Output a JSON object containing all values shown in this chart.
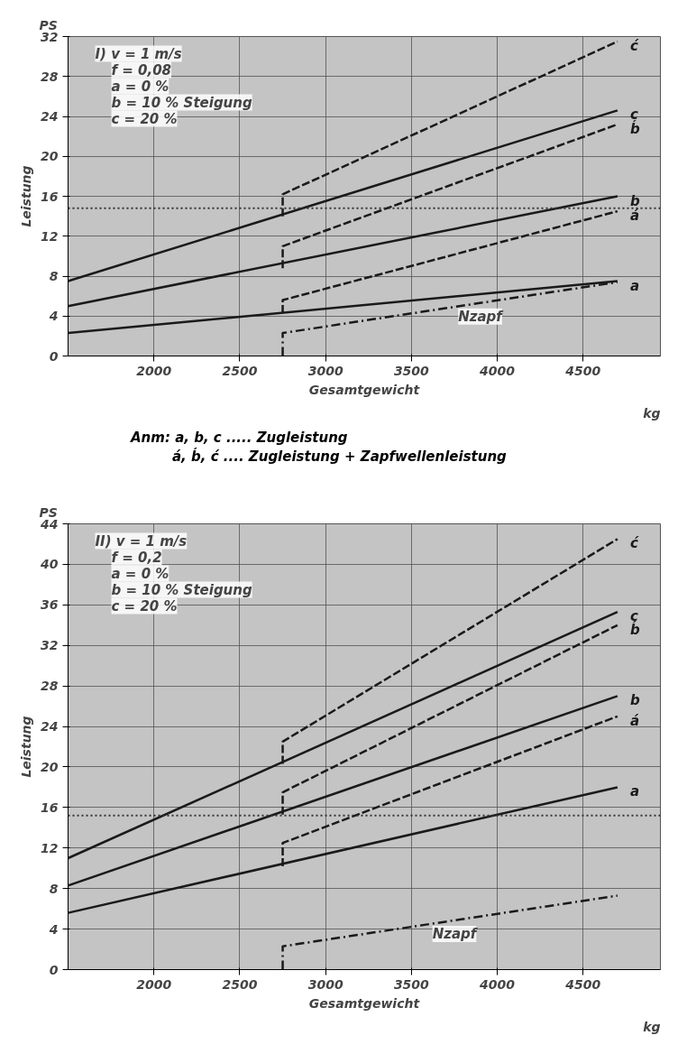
{
  "chart_data": [
    {
      "type": "line",
      "ylabel": "Leistung",
      "xlabel": "Gesamtgewicht",
      "xlim": [
        1500,
        4950
      ],
      "xticks": [
        2000,
        2500,
        3000,
        3500,
        4000,
        4500
      ],
      "ylim": [
        0,
        32
      ],
      "yticks": [
        0,
        4,
        8,
        12,
        16,
        20,
        24,
        28,
        32
      ],
      "grid": true,
      "legend": false,
      "annotations": [
        "I) v = 1 m/s\nf = 0,08\na = 0 %\nb = 10 % Steigung\nc = 20 %",
        "PS",
        "kg",
        "Anm:  a, b, c ..... Zugleistung",
        "á, b́, ć .... Zugleistung + Zapfwellenleistung",
        {
          "text": "Nzapf",
          "x": 3900,
          "y": 5.31
        }
      ],
      "ref_lines": [
        {
          "axis": "y",
          "value": 14.8,
          "label": null,
          "line_style": "dotted",
          "color": "#333333"
        }
      ],
      "series": [
        {
          "name": "a",
          "color": "#1a1a1a",
          "line_style": "solid",
          "x": [
            1500,
            4700
          ],
          "values": [
            2.3,
            7.5
          ]
        },
        {
          "name": "b",
          "color": "#1a1a1a",
          "line_style": "solid",
          "x": [
            1500,
            4700
          ],
          "values": [
            5,
            16
          ]
        },
        {
          "name": "c",
          "color": "#1a1a1a",
          "line_style": "solid",
          "x": [
            1500,
            4700
          ],
          "values": [
            7.5,
            24.6
          ]
        },
        {
          "name": "á",
          "color": "#1a1a1a",
          "line_style": "dashed",
          "x": [
            2750,
            2750,
            4700
          ],
          "values": [
            4.3,
            5.6,
            14.5
          ]
        },
        {
          "name": "b́",
          "color": "#1a1a1a",
          "line_style": "dashed",
          "x": [
            2750,
            2750,
            4700
          ],
          "values": [
            8.8,
            11,
            23.2
          ]
        },
        {
          "name": "ć",
          "color": "#1a1a1a",
          "line_style": "dashed",
          "x": [
            2750,
            2750,
            4700
          ],
          "values": [
            14,
            16.2,
            31.5
          ]
        },
        {
          "color": "#1a1a1a",
          "line_style": "dashdot",
          "x": [
            2750,
            2750,
            4700
          ],
          "values": [
            0,
            2.3,
            7.4
          ]
        }
      ]
    },
    {
      "type": "line",
      "ylabel": "Leistung",
      "xlabel": "Gesamtgewicht",
      "xlim": [
        1500,
        4950
      ],
      "xticks": [
        2000,
        2500,
        3000,
        3500,
        4000,
        4500
      ],
      "ylim": [
        0,
        44
      ],
      "yticks": [
        0,
        4,
        8,
        12,
        16,
        20,
        24,
        28,
        32,
        36,
        40,
        44
      ],
      "grid": true,
      "legend": false,
      "annotations": [
        "II) v = 1 m/s\nf = 0,2\na = 0 %\nb = 10 % Steigung\nc = 20 %",
        "PS",
        "kg",
        {
          "text": "Nzapf",
          "x": 3750,
          "y": 4.86
        }
      ],
      "ref_lines": [
        {
          "axis": "y",
          "value": 15.2,
          "label": null,
          "line_style": "dotted",
          "color": "#333333"
        }
      ],
      "series": [
        {
          "name": "a",
          "color": "#1a1a1a",
          "line_style": "solid",
          "x": [
            1500,
            4700
          ],
          "values": [
            5.6,
            18
          ]
        },
        {
          "name": "b",
          "color": "#1a1a1a",
          "line_style": "solid",
          "x": [
            1500,
            4700
          ],
          "values": [
            8.3,
            27
          ]
        },
        {
          "name": "c",
          "color": "#1a1a1a",
          "line_style": "solid",
          "x": [
            1500,
            4700
          ],
          "values": [
            11,
            35.3
          ]
        },
        {
          "name": "á",
          "color": "#1a1a1a",
          "line_style": "dashed",
          "x": [
            2750,
            2750,
            4700
          ],
          "values": [
            10.2,
            12.5,
            25
          ]
        },
        {
          "name": "b́",
          "color": "#1a1a1a",
          "line_style": "dashed",
          "x": [
            2750,
            2750,
            4700
          ],
          "values": [
            15.3,
            17.5,
            34
          ]
        },
        {
          "name": "ć",
          "color": "#1a1a1a",
          "line_style": "dashed",
          "x": [
            2750,
            2750,
            4700
          ],
          "values": [
            20.3,
            22.5,
            42.5
          ]
        },
        {
          "color": "#1a1a1a",
          "line_style": "dashdot",
          "x": [
            2750,
            2750,
            4700
          ],
          "values": [
            0,
            2.3,
            7.3
          ]
        }
      ]
    }
  ]
}
